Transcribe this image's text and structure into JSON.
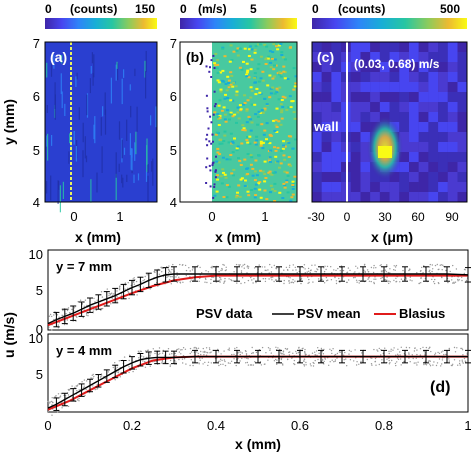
{
  "panels": {
    "a": {
      "label": "(a)",
      "colorbar": {
        "min_label": "0",
        "unit_label": "(counts)",
        "max_label": "150"
      },
      "xticks": [
        "0",
        "1"
      ],
      "yticks": [
        "4",
        "5",
        "6",
        "7"
      ],
      "xlabel": "x (mm)",
      "ylabel": "y (mm)"
    },
    "b": {
      "label": "(b)",
      "colorbar": {
        "min_label": "0",
        "unit_label": "(m/s)",
        "max_label": "5"
      },
      "xticks": [
        "0",
        "1"
      ],
      "yticks": [
        "4",
        "5",
        "6",
        "7"
      ],
      "xlabel": "x (mm)"
    },
    "c": {
      "label": "(c)",
      "colorbar": {
        "min_label": "0",
        "unit_label": "(counts)",
        "max_label": "500"
      },
      "annotation": "(0.03, 0.68) m/s",
      "wall_label": "wall",
      "xticks": [
        "-30",
        "0",
        "30",
        "60",
        "90"
      ],
      "xlabel_prefix": "x (",
      "xlabel_mu": "μ",
      "xlabel_suffix": "m)"
    },
    "d": {
      "label": "(d)",
      "ylabel": "u (m/s)",
      "xlabel": "x (mm)",
      "top_label": "y = 7 mm",
      "bottom_label": "y = 4 mm",
      "yticks": [
        "0",
        "5",
        "10"
      ],
      "xticks": [
        "0",
        "0.2",
        "0.4",
        "0.6",
        "0.8",
        "1"
      ],
      "legend": [
        "PSV data",
        "PSV mean",
        "Blasius"
      ]
    }
  },
  "colors": {
    "psv_data": "#9a9a9a",
    "psv_mean": "#000000",
    "blasius": "#e01b1b",
    "cmap_low": "#3e26a8",
    "cmap_high": "#f9fb15"
  },
  "chart_data": [
    {
      "type": "heatmap",
      "panel": "a",
      "title": "",
      "colorbar_range": [
        0,
        150
      ],
      "colorbar_unit": "(counts)",
      "xlabel": "x (mm)",
      "ylabel": "y (mm)",
      "xlim": [
        -0.5,
        1.5
      ],
      "ylim": [
        4,
        7
      ]
    },
    {
      "type": "heatmap",
      "panel": "b",
      "title": "",
      "colorbar_range": [
        0,
        5
      ],
      "colorbar_unit": "(m/s)",
      "xlabel": "x (mm)",
      "ylabel": "",
      "xlim": [
        -0.5,
        1.5
      ],
      "ylim": [
        4,
        7
      ]
    },
    {
      "type": "heatmap",
      "panel": "c",
      "title": "",
      "colorbar_range": [
        0,
        500
      ],
      "colorbar_unit": "(counts)",
      "xlabel": "x (μm)",
      "xlim": [
        -30,
        100
      ],
      "peak": {
        "x": 30,
        "y": 0.35,
        "value": 500
      }
    },
    {
      "type": "line",
      "panel": "d-top",
      "title": "y = 7 mm",
      "xlabel": "",
      "ylabel": "u (m/s)",
      "xlim": [
        0,
        1
      ],
      "ylim": [
        0,
        10
      ],
      "series": [
        {
          "name": "PSV mean",
          "x": [
            0.0,
            0.02,
            0.04,
            0.06,
            0.08,
            0.1,
            0.12,
            0.14,
            0.16,
            0.18,
            0.2,
            0.22,
            0.24,
            0.26,
            0.28,
            0.3,
            0.35,
            0.4,
            0.45,
            0.5,
            0.55,
            0.6,
            0.65,
            0.7,
            0.75,
            0.8,
            0.85,
            0.9,
            0.95,
            1.0
          ],
          "y": [
            0.8,
            1.3,
            1.7,
            2.1,
            2.6,
            3.1,
            3.5,
            3.9,
            4.3,
            4.8,
            5.3,
            5.7,
            6.2,
            6.6,
            6.9,
            7.0,
            7.0,
            7.0,
            7.0,
            7.0,
            7.0,
            7.0,
            7.0,
            7.0,
            7.0,
            7.0,
            7.0,
            7.0,
            7.0,
            6.9
          ],
          "err": 0.9
        },
        {
          "name": "Blasius",
          "x": [
            0.0,
            0.05,
            0.1,
            0.15,
            0.2,
            0.25,
            0.3,
            0.35,
            0.4,
            0.45,
            0.5,
            0.6,
            0.7,
            0.8,
            0.9,
            1.0
          ],
          "y": [
            0.6,
            1.6,
            2.6,
            3.6,
            4.6,
            5.5,
            6.2,
            6.6,
            6.8,
            6.8,
            6.8,
            6.8,
            6.8,
            6.8,
            6.8,
            6.8
          ]
        }
      ]
    },
    {
      "type": "line",
      "panel": "d-bottom",
      "title": "y = 4 mm",
      "xlabel": "x (mm)",
      "ylabel": "u (m/s)",
      "xlim": [
        0,
        1
      ],
      "ylim": [
        0,
        10
      ],
      "series": [
        {
          "name": "PSV mean",
          "x": [
            0.0,
            0.02,
            0.04,
            0.06,
            0.08,
            0.1,
            0.12,
            0.14,
            0.16,
            0.18,
            0.2,
            0.22,
            0.24,
            0.26,
            0.28,
            0.3,
            0.35,
            0.4,
            0.45,
            0.5,
            0.55,
            0.6,
            0.65,
            0.7,
            0.75,
            0.8,
            0.85,
            0.9,
            0.95,
            1.0
          ],
          "y": [
            0.5,
            1.0,
            1.6,
            2.2,
            2.8,
            3.4,
            4.0,
            4.6,
            5.2,
            5.8,
            6.3,
            6.7,
            6.9,
            7.0,
            7.0,
            7.0,
            7.1,
            7.1,
            7.1,
            7.1,
            7.1,
            7.1,
            7.1,
            7.1,
            7.1,
            7.1,
            7.1,
            7.1,
            7.1,
            7.1
          ],
          "err": 0.8
        },
        {
          "name": "Blasius",
          "x": [
            0.0,
            0.05,
            0.1,
            0.15,
            0.2,
            0.25,
            0.3,
            0.35,
            0.4,
            0.5,
            0.6,
            0.7,
            0.8,
            0.9,
            1.0
          ],
          "y": [
            0.3,
            1.4,
            2.8,
            4.2,
            5.6,
            6.6,
            7.0,
            7.1,
            7.1,
            7.1,
            7.1,
            7.1,
            7.1,
            7.1,
            7.1
          ]
        }
      ]
    }
  ]
}
